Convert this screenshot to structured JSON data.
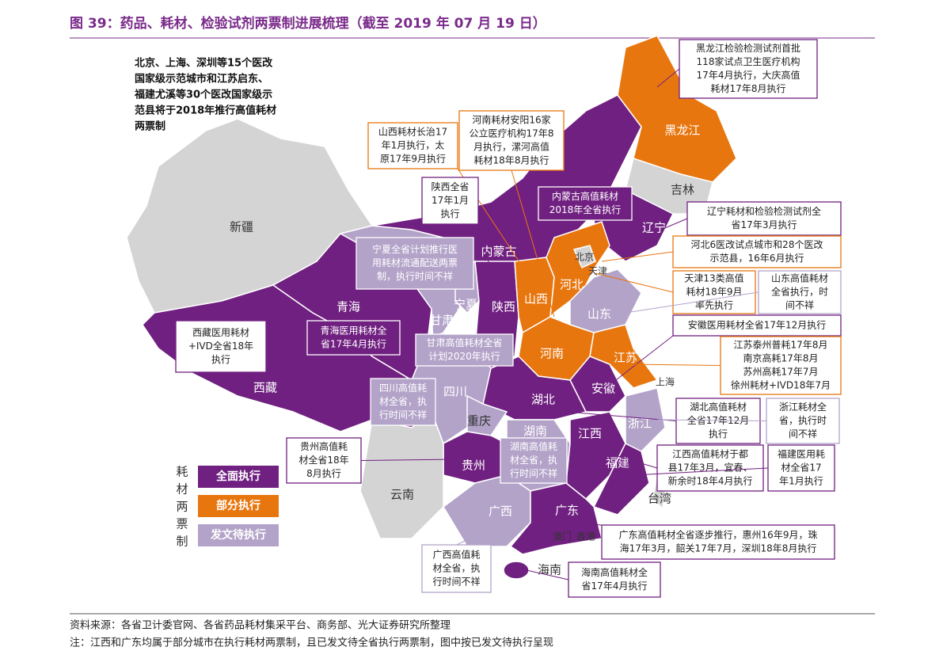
{
  "title": "图 39：药品、耗材、检验试剂两票制进展梳理（截至 2019 年 07 月 19 日）",
  "intro": [
    "北京、上海、深圳等15个医改",
    "国家级示范城市和江苏启东、",
    "福建尤溪等30个医改国家级示",
    "范县将于2018年推行高值耗材",
    "两票制"
  ],
  "provinces": [
    "新疆",
    "西藏",
    "青海",
    "甘肃",
    "宁夏",
    "陕西",
    "内蒙古",
    "黑龙江",
    "吉林",
    "辽宁",
    "北京",
    "天津",
    "河北",
    "山西",
    "山东",
    "河南",
    "江苏",
    "上海",
    "安徽",
    "湖北",
    "四川",
    "重庆",
    "贵州",
    "云南",
    "湖南",
    "江西",
    "浙江",
    "福建",
    "广西",
    "广东",
    "海南",
    "台湾",
    "澳门",
    "香港"
  ],
  "callouts": [
    {
      "lines": [
        "黑龙江检验检测试剂首批",
        "118家试点卫生医疗机构",
        "17年4月执行，大庆高值",
        "耗材17年8月执行"
      ]
    },
    {
      "lines": [
        "河南耗材安阳16家",
        "公立医疗机构17年8",
        "月执行，漯河高值",
        "耗材18年8月执行"
      ]
    },
    {
      "lines": [
        "山西耗材长治17",
        "年1月执行，太",
        "原17年9月执行"
      ]
    },
    {
      "lines": [
        "陕西全省",
        "17年1月",
        "执行"
      ]
    },
    {
      "lines": [
        "内蒙古高值耗材",
        "2018年全省执行"
      ]
    },
    {
      "lines": [
        "辽宁耗材和检验检测试剂全",
        "省17年3月执行"
      ]
    },
    {
      "lines": [
        "河北6医改试点城市和28个医改",
        "示范县，16年6月执行"
      ]
    },
    {
      "lines": [
        "宁夏全省计划推行医",
        "用耗材流通配送两票",
        "制，执行时间不祥"
      ]
    },
    {
      "lines": [
        "天津13类高值",
        "耗材18年9月",
        "率先执行"
      ]
    },
    {
      "lines": [
        "山东高值耗材",
        "全省执行，时",
        "间不祥"
      ]
    },
    {
      "lines": [
        "安徽医用耗材全省17年12月执行"
      ]
    },
    {
      "lines": [
        "西藏医用耗材",
        "+IVD全省18年",
        "执行"
      ]
    },
    {
      "lines": [
        "青海医用耗材全",
        "省17年4月执行"
      ]
    },
    {
      "lines": [
        "甘肃高值耗材全省",
        "计划2020年执行"
      ]
    },
    {
      "lines": [
        "江苏泰州普耗17年8月",
        "南京高耗17年8月",
        "苏州高耗17年7月",
        "徐州耗材+IVD18年7月"
      ]
    },
    {
      "lines": [
        "四川高值耗",
        "材全省，执",
        "行时间不祥"
      ]
    },
    {
      "lines": [
        "湖北高值耗材",
        "全省17年12月",
        "执行"
      ]
    },
    {
      "lines": [
        "浙江耗材全",
        "省，执行时",
        "间不祥"
      ]
    },
    {
      "lines": [
        "贵州高值耗",
        "材全省18年",
        "8月执行"
      ]
    },
    {
      "lines": [
        "湖南高值耗",
        "材全省，执",
        "行时间不祥"
      ]
    },
    {
      "lines": [
        "江西高值耗材于都",
        "县17年3月，宜春、",
        "新余时18年4月执行"
      ]
    },
    {
      "lines": [
        "福建医用耗",
        "材全省17",
        "年1月执行"
      ]
    },
    {
      "lines": [
        "广东高值耗材全省逐步推行，惠州16年9月，珠",
        "海17年3月，韶关17年7月，深圳18年8月执行"
      ]
    },
    {
      "lines": [
        "广西高值耗",
        "材全省，执",
        "行时间不祥"
      ]
    },
    {
      "lines": [
        "海南高值耗材全",
        "省17年4月执行"
      ]
    }
  ],
  "legend": {
    "title": "耗材两票制",
    "items": [
      "全面执行",
      "部分执行",
      "发文待执行"
    ]
  },
  "source": "资料来源：各省卫计委官网、各省药品耗材集采平台、商务部、光大证券研究所整理",
  "note": "注：江西和广东均属于部分城市在执行耗材两票制，且已发文待全省执行两票制，图中按已发文待执行呈现"
}
